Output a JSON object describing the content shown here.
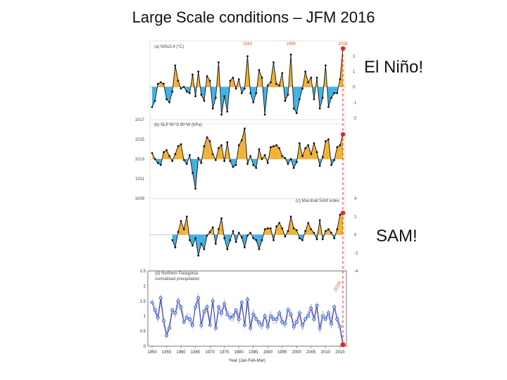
{
  "slide": {
    "title": "Large Scale conditions – JFM 2016",
    "callout_nino": "El Niño!",
    "callout_sam": "SAM!"
  },
  "colors": {
    "positive": "#f2b233",
    "negative": "#3fb1e3",
    "line": "#111111",
    "marker_2016": "#e8202a",
    "year_label": "#e8553a",
    "precip_mean": "#3a3fd1",
    "precip_member": "#b5b5b5"
  },
  "chart_data": [
    {
      "type": "area",
      "title": "(a) Niño3.4 (°C)",
      "highlight_years": [
        "1983",
        "1998",
        "2016"
      ],
      "x": [
        1950,
        1951,
        1952,
        1953,
        1954,
        1955,
        1956,
        1957,
        1958,
        1959,
        1960,
        1961,
        1962,
        1963,
        1964,
        1965,
        1966,
        1967,
        1968,
        1969,
        1970,
        1971,
        1972,
        1973,
        1974,
        1975,
        1976,
        1977,
        1978,
        1979,
        1980,
        1981,
        1982,
        1983,
        1984,
        1985,
        1986,
        1987,
        1988,
        1989,
        1990,
        1991,
        1992,
        1993,
        1994,
        1995,
        1996,
        1997,
        1998,
        1999,
        2000,
        2001,
        2002,
        2003,
        2004,
        2005,
        2006,
        2007,
        2008,
        2009,
        2010,
        2011,
        2012,
        2013,
        2014,
        2015,
        2016
      ],
      "values": [
        -1.3,
        -0.9,
        0.2,
        0.3,
        0.2,
        -0.8,
        -1.0,
        -0.3,
        1.4,
        0.4,
        -0.1,
        0.0,
        -0.3,
        -0.4,
        0.8,
        -0.6,
        1.0,
        -0.5,
        -0.9,
        0.7,
        0.4,
        -1.4,
        -0.7,
        1.6,
        -1.8,
        -0.6,
        -1.6,
        0.4,
        0.6,
        -0.1,
        0.5,
        -0.4,
        -0.1,
        2.0,
        -0.4,
        -1.0,
        -0.4,
        1.1,
        0.6,
        -1.8,
        0.1,
        0.3,
        1.6,
        0.2,
        0.1,
        0.9,
        -0.9,
        -0.5,
        2.1,
        -1.4,
        -1.7,
        -0.8,
        -0.1,
        1.0,
        0.3,
        0.6,
        -0.8,
        0.6,
        -1.4,
        -0.7,
        1.4,
        -1.3,
        -0.7,
        -0.4,
        -0.4,
        0.5,
        2.5
      ],
      "yticks": [
        "2",
        "1",
        "0",
        "-1",
        "-2"
      ],
      "ylim": [
        -2.4,
        3
      ]
    },
    {
      "type": "area",
      "title": "(b) SLP 50°S 90°W (hPa)",
      "x": [
        1950,
        1951,
        1952,
        1953,
        1954,
        1955,
        1956,
        1957,
        1958,
        1959,
        1960,
        1961,
        1962,
        1963,
        1964,
        1965,
        1966,
        1967,
        1968,
        1969,
        1970,
        1971,
        1972,
        1973,
        1974,
        1975,
        1976,
        1977,
        1978,
        1979,
        1980,
        1981,
        1982,
        1983,
        1984,
        1985,
        1986,
        1987,
        1988,
        1989,
        1990,
        1991,
        1992,
        1993,
        1994,
        1995,
        1996,
        1997,
        1998,
        1999,
        2000,
        2001,
        2002,
        2003,
        2004,
        2005,
        2006,
        2007,
        2008,
        2009,
        2010,
        2011,
        2012,
        2013,
        2014,
        2015,
        2016
      ],
      "values": [
        1013.6,
        1013.0,
        1012.6,
        1012.4,
        1013.7,
        1013.9,
        1013.3,
        1012.8,
        1013.5,
        1014.3,
        1014.5,
        1012.9,
        1012.5,
        1013.4,
        1011.6,
        1010.0,
        1013.1,
        1012.6,
        1014.3,
        1015.2,
        1014.8,
        1013.5,
        1012.9,
        1014.1,
        1014.4,
        1012.8,
        1014.7,
        1012.8,
        1012.2,
        1012.4,
        1014.4,
        1014.9,
        1016.1,
        1012.5,
        1013.3,
        1012.4,
        1012.1,
        1014.0,
        1013.0,
        1013.4,
        1012.6,
        1014.2,
        1014.3,
        1014.4,
        1014.1,
        1013.3,
        1013.1,
        1012.5,
        1013.0,
        1012.1,
        1012.7,
        1014.6,
        1013.3,
        1014.1,
        1014.4,
        1013.5,
        1014.6,
        1013.7,
        1012.3,
        1013.2,
        1014.8,
        1015.0,
        1012.4,
        1012.9,
        1014.2,
        1014.4,
        1015.5
      ],
      "yticks": [
        "1017",
        "1015",
        "1013",
        "1011",
        "1009"
      ],
      "ylim": [
        1009,
        1017
      ]
    },
    {
      "type": "area",
      "title": "(c) Marshall SAM index",
      "x": [
        1957,
        1958,
        1959,
        1960,
        1961,
        1962,
        1963,
        1964,
        1965,
        1966,
        1967,
        1968,
        1969,
        1970,
        1971,
        1972,
        1973,
        1974,
        1975,
        1976,
        1977,
        1978,
        1979,
        1980,
        1981,
        1982,
        1983,
        1984,
        1985,
        1986,
        1987,
        1988,
        1989,
        1990,
        1991,
        1992,
        1993,
        1994,
        1995,
        1996,
        1997,
        1998,
        1999,
        2000,
        2001,
        2002,
        2003,
        2004,
        2005,
        2006,
        2007,
        2008,
        2009,
        2010,
        2011,
        2012,
        2013,
        2014,
        2015,
        2016
      ],
      "values": [
        -0.6,
        -1.4,
        0.3,
        1.5,
        0.6,
        2.0,
        -0.6,
        -1.2,
        -0.4,
        -2.3,
        -1.0,
        -1.6,
        -0.1,
        0.3,
        0.8,
        -1.0,
        0.6,
        1.8,
        -0.4,
        -1.6,
        -0.6,
        0.4,
        -0.8,
        0.2,
        -0.3,
        -1.4,
        -0.1,
        0.2,
        -0.4,
        -0.6,
        -1.6,
        -0.6,
        0.6,
        0.7,
        0.7,
        -0.6,
        0.9,
        1.3,
        0.7,
        -0.2,
        0.4,
        2.0,
        0.7,
        0.5,
        -0.4,
        -0.6,
        0.4,
        1.3,
        0.6,
        0.2,
        -0.5,
        1.6,
        -0.5,
        0.4,
        0.6,
        0.2,
        -0.4,
        0.6,
        2.2,
        2.4
      ],
      "yticks": [
        "4",
        "2",
        "0",
        "-2",
        "-4"
      ],
      "ylim": [
        -4,
        4
      ]
    },
    {
      "type": "line",
      "title": "(d) Northern Patagonia normalised precipitation",
      "label_2016": "2016",
      "xlabel": "Year (Jan-Feb-Mar)",
      "xticks": [
        "1950",
        "1955",
        "1960",
        "1965",
        "1970",
        "1975",
        "1980",
        "1985",
        "1990",
        "1995",
        "2000",
        "2005",
        "2010",
        "2015"
      ],
      "yticks": [
        "2.5",
        "2",
        "1.5",
        "1",
        "0.5",
        "0"
      ],
      "ylim": [
        0,
        2.5
      ],
      "x": [
        1950,
        1951,
        1952,
        1953,
        1954,
        1955,
        1956,
        1957,
        1958,
        1959,
        1960,
        1961,
        1962,
        1963,
        1964,
        1965,
        1966,
        1967,
        1968,
        1969,
        1970,
        1971,
        1972,
        1973,
        1974,
        1975,
        1976,
        1977,
        1978,
        1979,
        1980,
        1981,
        1982,
        1983,
        1984,
        1985,
        1986,
        1987,
        1988,
        1989,
        1990,
        1991,
        1992,
        1993,
        1994,
        1995,
        1996,
        1997,
        1998,
        1999,
        2000,
        2001,
        2002,
        2003,
        2004,
        2005,
        2006,
        2007,
        2008,
        2009,
        2010,
        2011,
        2012,
        2013,
        2014,
        2015,
        2016
      ],
      "series": [
        {
          "values": [
            1.45,
            1.2,
            0.95,
            1.6,
            0.85,
            0.35,
            0.6,
            1.2,
            1.1,
            1.5,
            1.3,
            0.8,
            0.95,
            0.9,
            0.7,
            1.3,
            1.6,
            0.7,
            1.15,
            1.3,
            0.7,
            1.5,
            0.6,
            1.3,
            1.1,
            1.4,
            1.05,
            0.95,
            1.0,
            1.2,
            0.9,
            1.45,
            0.7,
            1.55,
            0.6,
            1.05,
            0.9,
            0.8,
            0.7,
            1.0,
            0.65,
            1.0,
            0.9,
            0.9,
            1.1,
            0.8,
            0.75,
            1.2,
            1.05,
            0.65,
            0.8,
            1.1,
            0.7,
            0.9,
            1.0,
            1.25,
            0.9,
            1.35,
            0.6,
            1.0,
            0.9,
            1.1,
            0.75,
            1.3,
            0.9,
            0.65,
            0.05
          ]
        }
      ]
    }
  ]
}
